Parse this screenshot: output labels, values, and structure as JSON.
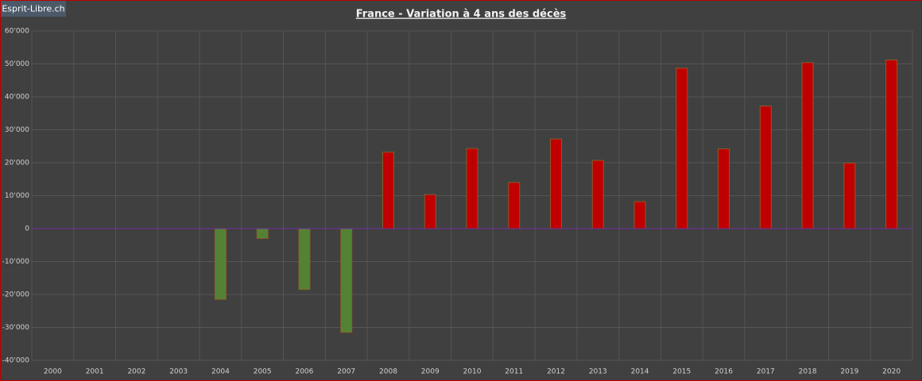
{
  "chart_data": {
    "type": "bar",
    "title": "France - Variation à 4 ans des décès",
    "badge": "Esprit-Libre.ch",
    "categories": [
      "2000",
      "2001",
      "2002",
      "2003",
      "2004",
      "2005",
      "2006",
      "2007",
      "2008",
      "2009",
      "2010",
      "2011",
      "2012",
      "2013",
      "2014",
      "2015",
      "2016",
      "2017",
      "2018",
      "2019",
      "2020"
    ],
    "values": [
      null,
      null,
      null,
      null,
      -21500,
      -3000,
      -18500,
      -31500,
      23200,
      10300,
      24300,
      14000,
      27200,
      20700,
      8200,
      48700,
      24200,
      37200,
      50400,
      19900,
      51200
    ],
    "positive_color": "#c00000",
    "negative_color": "#548235",
    "zero_line_color": "#7030a0",
    "ylim": [
      -40000,
      60000
    ],
    "yticks": [
      {
        "value": -40000,
        "label": "-40'000"
      },
      {
        "value": -30000,
        "label": "-30'000"
      },
      {
        "value": -20000,
        "label": "-20'000"
      },
      {
        "value": -10000,
        "label": "-10'000"
      },
      0,
      {
        "value": 10000,
        "label": "10'000"
      },
      {
        "value": 20000,
        "label": "20'000"
      },
      {
        "value": 30000,
        "label": "30'000"
      },
      {
        "value": 40000,
        "label": "40'000"
      },
      {
        "value": 50000,
        "label": "50'000"
      },
      {
        "value": 60000,
        "label": "60'000"
      }
    ],
    "grid": true
  }
}
